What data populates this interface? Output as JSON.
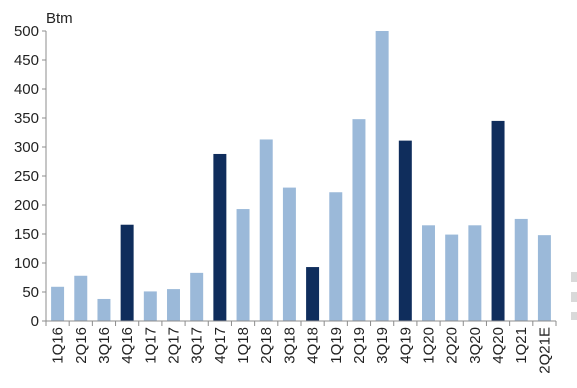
{
  "chart_data": {
    "type": "bar",
    "title": "",
    "ylabel": "Btm",
    "xlabel": "",
    "ylim": [
      0,
      500
    ],
    "y_ticks": [
      0,
      50,
      100,
      150,
      200,
      250,
      300,
      350,
      400,
      450,
      500
    ],
    "grid": false,
    "legend": "none",
    "categories": [
      "1Q16",
      "2Q16",
      "3Q16",
      "4Q16",
      "1Q17",
      "2Q17",
      "3Q17",
      "4Q17",
      "1Q18",
      "2Q18",
      "3Q18",
      "4Q18",
      "1Q19",
      "2Q19",
      "3Q19",
      "4Q19",
      "1Q20",
      "2Q20",
      "3Q20",
      "4Q20",
      "1Q21",
      "2Q21E"
    ],
    "values": [
      59,
      78,
      38,
      166,
      51,
      55,
      83,
      288,
      193,
      313,
      230,
      93,
      222,
      348,
      500,
      311,
      165,
      149,
      165,
      345,
      176,
      148
    ],
    "highlight": [
      false,
      false,
      false,
      true,
      false,
      false,
      false,
      true,
      false,
      false,
      false,
      true,
      false,
      false,
      false,
      true,
      false,
      false,
      false,
      true,
      false,
      false
    ],
    "colors": {
      "normal": "#9bb9d9",
      "highlight": "#0f2d5c",
      "axis": "#8c8c8c"
    }
  }
}
